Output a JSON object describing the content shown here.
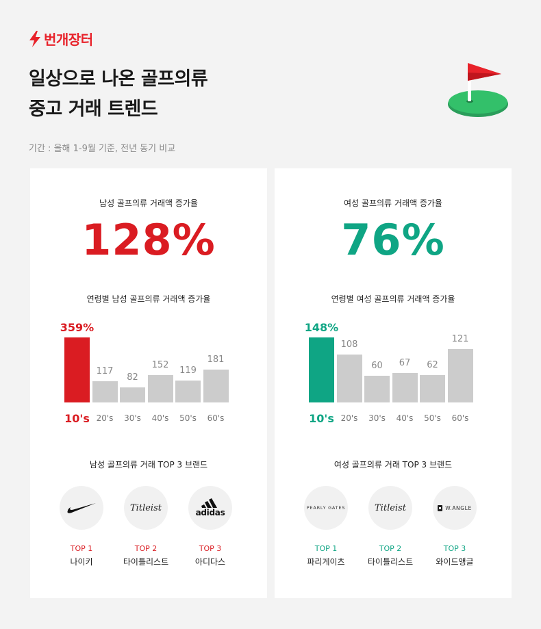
{
  "brand": {
    "name": "번개장터"
  },
  "title": {
    "line1": "일상으로 나온 골프의류",
    "line2": "중고 거래 트렌드"
  },
  "period": "기간 : 올해 1-9월 기준, 전년 동기 비교",
  "colors": {
    "men": "#da1c22",
    "women": "#0fa584",
    "bar_gray": "#cccccc"
  },
  "men": {
    "heading": "남성 골프의류 거래액 증가율",
    "big": "128%",
    "age_heading": "연령별 남성 골프의류 거래액 증가율",
    "brands_heading": "남성 골프의류 거래 TOP 3 브랜드",
    "bars": [
      {
        "label": "10's",
        "value_text": "359%",
        "value": 359
      },
      {
        "label": "20's",
        "value_text": "117",
        "value": 117
      },
      {
        "label": "30's",
        "value_text": "82",
        "value": 82
      },
      {
        "label": "40's",
        "value_text": "152",
        "value": 152
      },
      {
        "label": "50's",
        "value_text": "119",
        "value": 119
      },
      {
        "label": "60's",
        "value_text": "181",
        "value": 181
      }
    ],
    "brands": [
      {
        "rank": "TOP 1",
        "name": "나이키",
        "logo": "nike-swoosh"
      },
      {
        "rank": "TOP 2",
        "name": "타이틀리스트",
        "logo_text": "Titleist"
      },
      {
        "rank": "TOP 3",
        "name": "아디다스",
        "logo_text": "adidas"
      }
    ]
  },
  "women": {
    "heading": "여성 골프의류 거래액 증가율",
    "big": "76%",
    "age_heading": "연령별 여성 골프의류 거래액 증가율",
    "brands_heading": "여성 골프의류 거래 TOP 3 브랜드",
    "bars": [
      {
        "label": "10's",
        "value_text": "148%",
        "value": 148
      },
      {
        "label": "20's",
        "value_text": "108",
        "value": 108
      },
      {
        "label": "30's",
        "value_text": "60",
        "value": 60
      },
      {
        "label": "40's",
        "value_text": "67",
        "value": 67
      },
      {
        "label": "50's",
        "value_text": "62",
        "value": 62
      },
      {
        "label": "60's",
        "value_text": "121",
        "value": 121
      }
    ],
    "brands": [
      {
        "rank": "TOP 1",
        "name": "파리게이츠",
        "logo_text": "PEARLY GATES"
      },
      {
        "rank": "TOP 2",
        "name": "타이틀리스트",
        "logo_text": "Titleist"
      },
      {
        "rank": "TOP 3",
        "name": "와이드앵글",
        "logo_text": "W.ANGLE"
      }
    ]
  },
  "chart_data": [
    {
      "type": "bar",
      "categories": [
        "10's",
        "20's",
        "30's",
        "40's",
        "50's",
        "60's"
      ],
      "values": [
        359,
        117,
        82,
        152,
        119,
        181
      ],
      "title": "연령별 남성 골프의류 거래액 증가율"
    },
    {
      "type": "bar",
      "categories": [
        "10's",
        "20's",
        "30's",
        "40's",
        "50's",
        "60's"
      ],
      "values": [
        148,
        108,
        60,
        67,
        62,
        121
      ],
      "title": "연령별 여성 골프의류 거래액 증가율"
    }
  ]
}
